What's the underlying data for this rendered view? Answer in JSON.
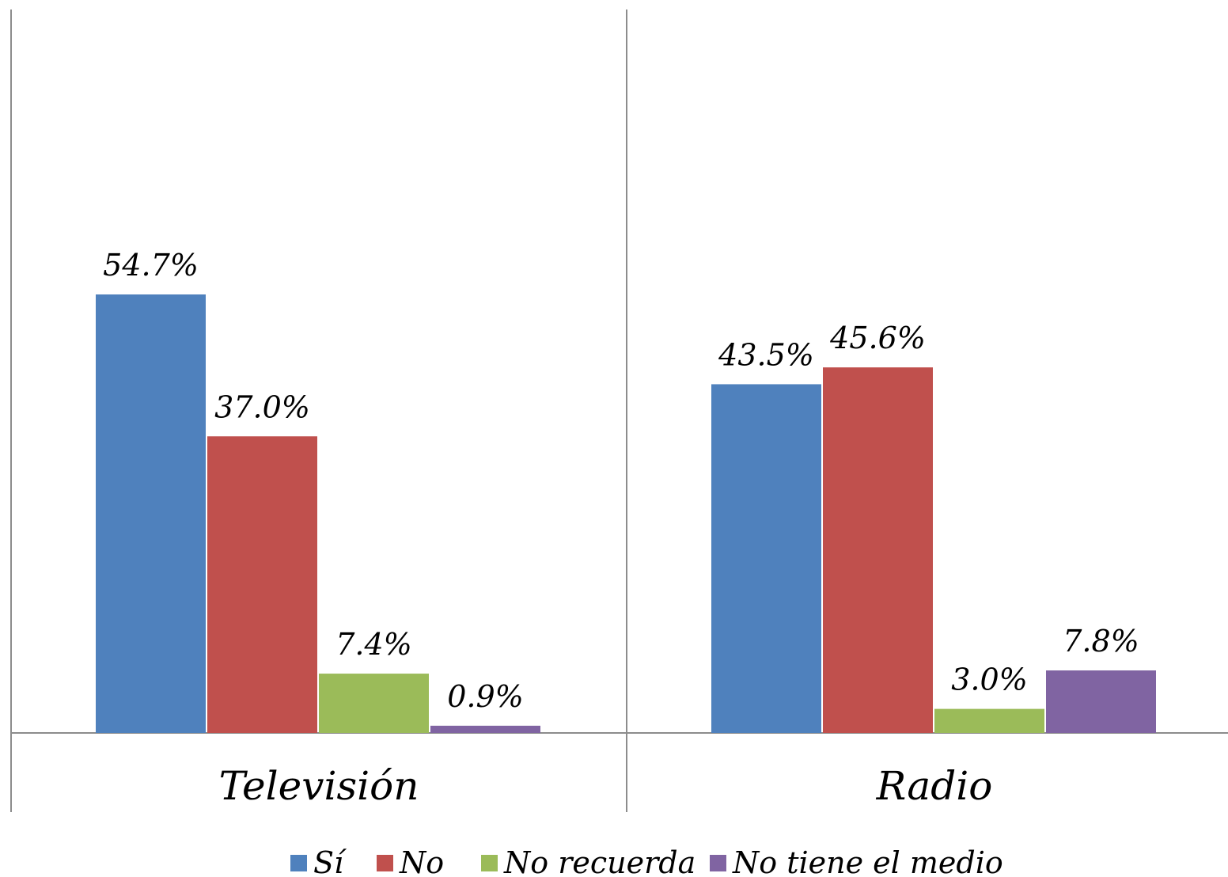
{
  "chart_data": {
    "type": "bar",
    "categories": [
      "Televisión",
      "Radio"
    ],
    "series": [
      {
        "name": "Sí",
        "values": [
          54.7,
          43.5
        ],
        "labels": [
          "54.7%",
          "43.5%"
        ],
        "color": "#4F81BD"
      },
      {
        "name": "No",
        "values": [
          37.0,
          45.6
        ],
        "labels": [
          "37.0%",
          "45.6%"
        ],
        "color": "#C0504D"
      },
      {
        "name": "No recuerda",
        "values": [
          7.4,
          3.0
        ],
        "labels": [
          "7.4%",
          "3.0%"
        ],
        "color": "#9BBB59"
      },
      {
        "name": "No tiene el medio",
        "values": [
          0.9,
          7.8
        ],
        "labels": [
          "0.9%",
          "7.8%"
        ],
        "color": "#8064A2"
      }
    ],
    "title": "",
    "xlabel": "",
    "ylabel": "",
    "ylim": [
      0,
      110
    ],
    "grid": false,
    "legend": "bottom"
  },
  "colors": {
    "axis": "#8C8C8C"
  }
}
